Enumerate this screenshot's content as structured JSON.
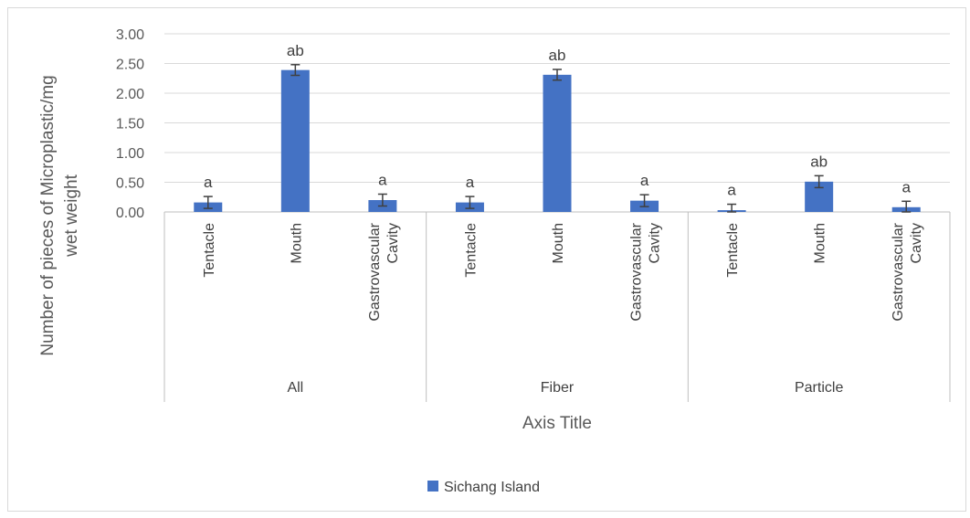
{
  "chart_data": {
    "type": "bar",
    "title": "",
    "xlabel": "Axis Title",
    "ylabel": [
      "Number of pieces of Microplastic/mg",
      "wet weight"
    ],
    "ylim": [
      0,
      3
    ],
    "yticks": [
      "0.00",
      "0.50",
      "1.00",
      "1.50",
      "2.00",
      "2.50",
      "3.00"
    ],
    "grid": "horizontal",
    "legend_position": "bottom",
    "groups": [
      {
        "name": "All",
        "categories": [
          [
            "Tentacle"
          ],
          [
            "Mouth"
          ],
          [
            "Gastrovascular",
            "Cavity"
          ]
        ]
      },
      {
        "name": "Fiber",
        "categories": [
          [
            "Tentacle"
          ],
          [
            "Mouth"
          ],
          [
            "Gastrovascular",
            "Cavity"
          ]
        ]
      },
      {
        "name": "Particle",
        "categories": [
          [
            "Tentacle"
          ],
          [
            "Mouth"
          ],
          [
            "Gastrovascular",
            "Cavity"
          ]
        ]
      }
    ],
    "series": [
      {
        "name": "Sichang Island",
        "color": "#4472c4",
        "values": [
          0.16,
          2.39,
          0.2,
          0.16,
          2.31,
          0.19,
          0.03,
          0.51,
          0.08
        ],
        "errors": [
          0.1,
          0.09,
          0.1,
          0.1,
          0.09,
          0.1,
          0.1,
          0.1,
          0.1
        ],
        "labels": [
          "a",
          "ab",
          "a",
          "a",
          "ab",
          "a",
          "a",
          "ab",
          "a"
        ]
      }
    ]
  }
}
